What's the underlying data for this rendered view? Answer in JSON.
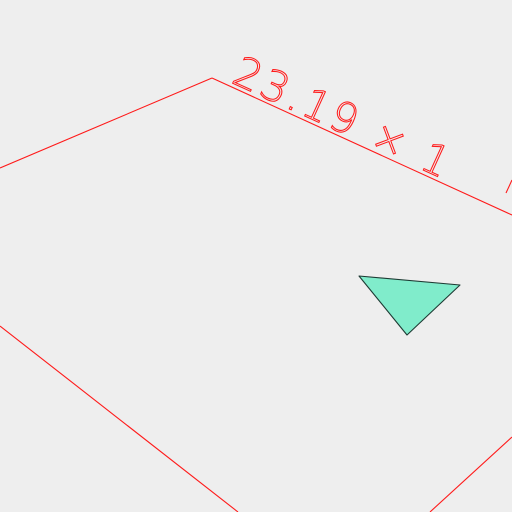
{
  "scene": {
    "background_color": "#eeeeee",
    "outline_color": "#ff1a1a",
    "triangle_fill": "#80eccb",
    "triangle_stroke": "#1d3a33"
  },
  "dimension_label": "23.19 × 1"
}
